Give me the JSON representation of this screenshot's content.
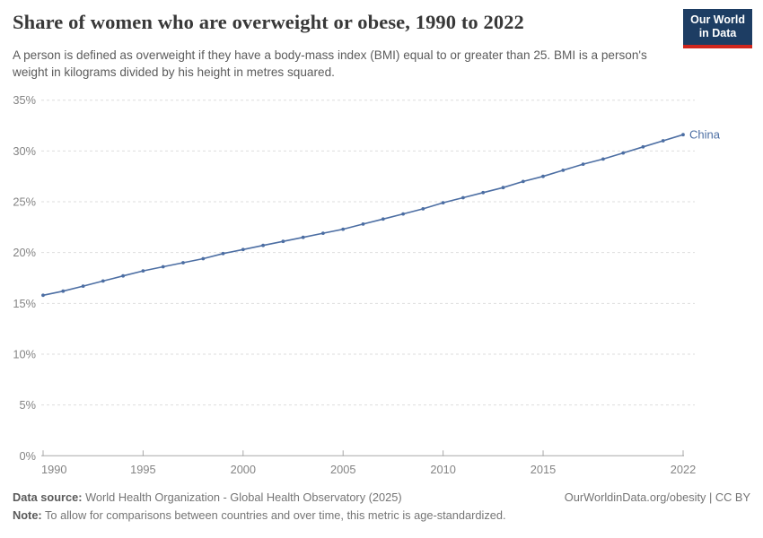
{
  "header": {
    "title": "Share of women who are overweight or obese, 1990 to 2022",
    "subtitle": "A person is defined as overweight if they have a body-mass index (BMI) equal to or greater than 25. BMI is a person's weight in kilograms divided by his height in metres squared.",
    "logo": {
      "line1": "Our World",
      "line2": "in Data",
      "bg_color": "#1d3d63",
      "accent_color": "#d0261d"
    }
  },
  "chart_data": {
    "type": "line",
    "title": "Share of women who are overweight or obese, 1990 to 2022",
    "entity": "China",
    "unit": "%",
    "xlim": [
      1990,
      2022
    ],
    "ylim": [
      0,
      35
    ],
    "grid": "horizontal-dashed",
    "legend_position": "end-of-line",
    "x_ticks": [
      {
        "value": 1990,
        "label": "1990"
      },
      {
        "value": 1995,
        "label": "1995"
      },
      {
        "value": 2000,
        "label": "2000"
      },
      {
        "value": 2005,
        "label": "2005"
      },
      {
        "value": 2010,
        "label": "2010"
      },
      {
        "value": 2015,
        "label": "2015"
      },
      {
        "value": 2022,
        "label": "2022"
      }
    ],
    "y_ticks": [
      {
        "value": 0,
        "label": "0%"
      },
      {
        "value": 5,
        "label": "5%"
      },
      {
        "value": 10,
        "label": "10%"
      },
      {
        "value": 15,
        "label": "15%"
      },
      {
        "value": 20,
        "label": "20%"
      },
      {
        "value": 25,
        "label": "25%"
      },
      {
        "value": 30,
        "label": "30%"
      },
      {
        "value": 35,
        "label": "35%"
      }
    ],
    "series": [
      {
        "name": "China",
        "color": "#4c6ea3",
        "years": [
          1990,
          1991,
          1992,
          1993,
          1994,
          1995,
          1996,
          1997,
          1998,
          1999,
          2000,
          2001,
          2002,
          2003,
          2004,
          2005,
          2006,
          2007,
          2008,
          2009,
          2010,
          2011,
          2012,
          2013,
          2014,
          2015,
          2016,
          2017,
          2018,
          2019,
          2020,
          2021,
          2022
        ],
        "values": [
          15.8,
          16.2,
          16.7,
          17.2,
          17.7,
          18.2,
          18.6,
          19.0,
          19.4,
          19.9,
          20.3,
          20.7,
          21.1,
          21.5,
          21.9,
          22.3,
          22.8,
          23.3,
          23.8,
          24.3,
          24.9,
          25.4,
          25.9,
          26.4,
          27.0,
          27.5,
          28.1,
          28.7,
          29.2,
          29.8,
          30.4,
          31.0,
          31.6
        ]
      }
    ]
  },
  "footer": {
    "data_source_label": "Data source:",
    "data_source_text": " World Health Organization - Global Health Observatory (2025)",
    "note_label": "Note:",
    "note_text": " To allow for comparisons between countries and over time, this metric is age-standardized.",
    "citation": "OurWorldinData.org/obesity | CC BY"
  }
}
